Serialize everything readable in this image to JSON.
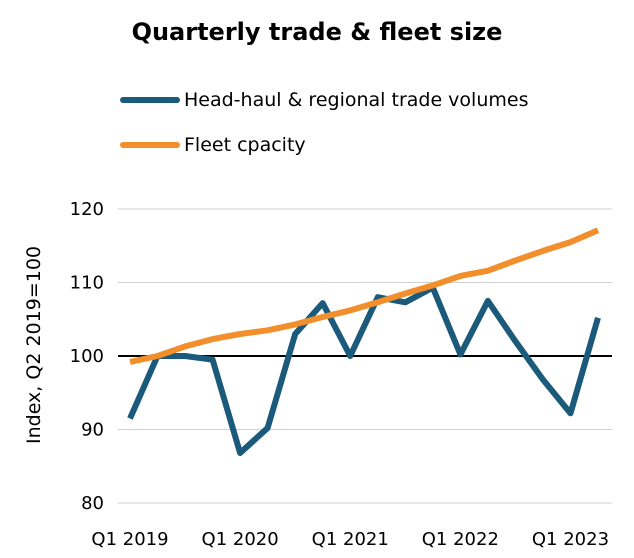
{
  "chart_data": {
    "type": "line",
    "title": "Quarterly trade & fleet size",
    "ylabel": "Index, Q2 2019=100",
    "xlabel": "",
    "ylim": [
      80,
      120
    ],
    "yticks": [
      80,
      90,
      100,
      110,
      120
    ],
    "gridlines": true,
    "legend_position": "top",
    "x": [
      "Q1 2019",
      "Q2 2019",
      "Q3 2019",
      "Q4 2019",
      "Q1 2020",
      "Q2 2020",
      "Q3 2020",
      "Q4 2020",
      "Q1 2021",
      "Q2 2021",
      "Q3 2021",
      "Q4 2021",
      "Q1 2022",
      "Q2 2022",
      "Q3 2022",
      "Q4 2022",
      "Q1 2023",
      "Q2 2023"
    ],
    "xtick_labels": [
      "Q1 2019",
      "Q1 2020",
      "Q1 2021",
      "Q1 2022",
      "Q1 2023"
    ],
    "series": [
      {
        "name": "Head-haul & regional trade volumes",
        "color": "#1b5a7a",
        "values": [
          91.5,
          100,
          100,
          99.5,
          86.8,
          90.2,
          103,
          107.2,
          100,
          108,
          107.3,
          109.3,
          100.2,
          107.5,
          102,
          96.8,
          92.2,
          105.2
        ]
      },
      {
        "name": "Fleet cpacity",
        "color": "#f28e2b",
        "values": [
          99.2,
          100,
          101.3,
          102.3,
          103,
          103.5,
          104.3,
          105.3,
          106.2,
          107.3,
          108.5,
          109.6,
          110.9,
          111.6,
          113.0,
          114.3,
          115.5,
          117.1
        ]
      }
    ]
  }
}
